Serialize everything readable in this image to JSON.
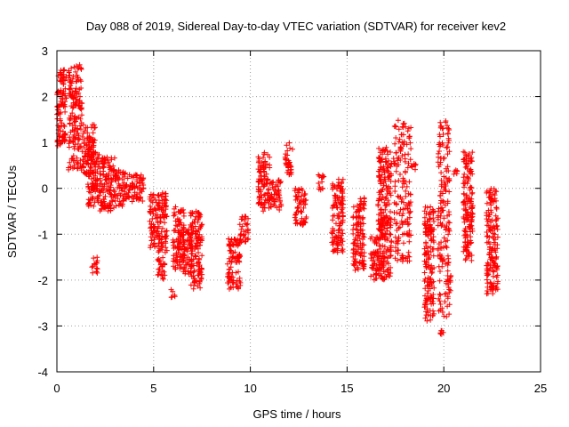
{
  "chart_data": {
    "type": "scatter",
    "title": "Day 088 of 2019, Sidereal Day-to-day VTEC variation (SDTVAR) for receiver kev2",
    "xlabel": "GPS time / hours",
    "ylabel": "SDTVAR / TECUs",
    "xlim": [
      0,
      25
    ],
    "ylim": [
      -4,
      3
    ],
    "xticks": [
      0,
      5,
      10,
      15,
      20,
      25
    ],
    "yticks": [
      -4,
      -3,
      -2,
      -1,
      0,
      1,
      2,
      3
    ],
    "grid": true,
    "marker": "+",
    "color": "#ff0000",
    "series": [
      {
        "name": "SDTVAR",
        "clusters": [
          {
            "x": [
              0.0,
              0.5
            ],
            "y": [
              0.9,
              2.6
            ]
          },
          {
            "x": [
              0.6,
              1.3
            ],
            "y": [
              0.4,
              2.7
            ]
          },
          {
            "x": [
              1.3,
              2.0
            ],
            "y": [
              0.3,
              1.4
            ]
          },
          {
            "x": [
              1.6,
              2.2
            ],
            "y": [
              -0.4,
              0.8
            ]
          },
          {
            "x": [
              1.8,
              2.1
            ],
            "y": [
              -1.9,
              -1.5
            ]
          },
          {
            "x": [
              2.2,
              3.0
            ],
            "y": [
              -0.5,
              0.7
            ]
          },
          {
            "x": [
              3.0,
              3.6
            ],
            "y": [
              -0.4,
              0.4
            ]
          },
          {
            "x": [
              3.6,
              4.5
            ],
            "y": [
              -0.3,
              0.3
            ]
          },
          {
            "x": [
              4.8,
              5.7
            ],
            "y": [
              -1.4,
              -0.1
            ]
          },
          {
            "x": [
              5.2,
              5.6
            ],
            "y": [
              -2.0,
              -1.5
            ]
          },
          {
            "x": [
              5.9,
              6.1
            ],
            "y": [
              -2.4,
              -2.2
            ]
          },
          {
            "x": [
              6.0,
              6.6
            ],
            "y": [
              -1.8,
              -0.4
            ]
          },
          {
            "x": [
              6.5,
              7.0
            ],
            "y": [
              -1.9,
              -0.9
            ]
          },
          {
            "x": [
              6.9,
              7.5
            ],
            "y": [
              -2.2,
              -0.5
            ]
          },
          {
            "x": [
              8.8,
              9.5
            ],
            "y": [
              -2.2,
              -1.1
            ]
          },
          {
            "x": [
              9.4,
              9.9
            ],
            "y": [
              -1.2,
              -0.6
            ]
          },
          {
            "x": [
              10.4,
              11.0
            ],
            "y": [
              -0.5,
              0.8
            ]
          },
          {
            "x": [
              11.0,
              11.6
            ],
            "y": [
              -0.5,
              0.2
            ]
          },
          {
            "x": [
              11.8,
              12.2
            ],
            "y": [
              0.3,
              1.0
            ]
          },
          {
            "x": [
              12.3,
              12.9
            ],
            "y": [
              -0.8,
              0.0
            ]
          },
          {
            "x": [
              13.5,
              13.8
            ],
            "y": [
              -0.1,
              0.3
            ]
          },
          {
            "x": [
              14.2,
              14.8
            ],
            "y": [
              -1.4,
              0.2
            ]
          },
          {
            "x": [
              15.3,
              15.9
            ],
            "y": [
              -1.8,
              -0.2
            ]
          },
          {
            "x": [
              16.2,
              17.3
            ],
            "y": [
              -2.0,
              -1.0
            ]
          },
          {
            "x": [
              16.6,
              17.3
            ],
            "y": [
              -1.0,
              0.9
            ]
          },
          {
            "x": [
              17.4,
              18.3
            ],
            "y": [
              -1.6,
              1.5
            ]
          },
          {
            "x": [
              18.3,
              18.6
            ],
            "y": [
              0.4,
              0.6
            ]
          },
          {
            "x": [
              19.0,
              19.5
            ],
            "y": [
              -2.9,
              -0.4
            ]
          },
          {
            "x": [
              19.7,
              20.3
            ],
            "y": [
              -2.8,
              1.5
            ]
          },
          {
            "x": [
              19.8,
              20.0
            ],
            "y": [
              -3.2,
              -3.1
            ]
          },
          {
            "x": [
              20.2,
              20.4
            ],
            "y": [
              -2.3,
              -1.8
            ]
          },
          {
            "x": [
              20.5,
              20.7
            ],
            "y": [
              0.3,
              0.4
            ]
          },
          {
            "x": [
              21.0,
              21.5
            ],
            "y": [
              -1.6,
              0.8
            ]
          },
          {
            "x": [
              22.2,
              22.8
            ],
            "y": [
              -2.3,
              0.0
            ]
          }
        ]
      }
    ]
  }
}
